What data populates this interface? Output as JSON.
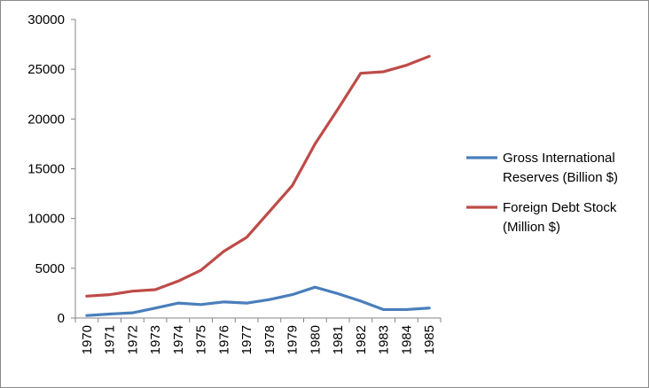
{
  "chart_data": {
    "type": "line",
    "categories": [
      "1970",
      "1971",
      "1972",
      "1973",
      "1974",
      "1975",
      "1976",
      "1977",
      "1978",
      "1979",
      "1980",
      "1981",
      "1982",
      "1983",
      "1984",
      "1985"
    ],
    "x": [
      "1970",
      "1971",
      "1972",
      "1973",
      "1974",
      "1975",
      "1976",
      "1977",
      "1978",
      "1979",
      "1980",
      "1981",
      "1982",
      "1983",
      "1984",
      "1985"
    ],
    "series": [
      {
        "name": "Gross International Reserves (Billion $)",
        "legend_lines": [
          "Gross International",
          "Reserves (Billion $)"
        ],
        "color": "#4a7ebb",
        "values": [
          250,
          400,
          520,
          1000,
          1500,
          1350,
          1620,
          1500,
          1850,
          2350,
          3100,
          2450,
          1700,
          850,
          850,
          1000
        ]
      },
      {
        "name": "Foreign Debt Stock (Million $)",
        "legend_lines": [
          "Foreign Debt Stock",
          "(Million $)"
        ],
        "color": "#be4b48",
        "values": [
          2200,
          2350,
          2700,
          2850,
          3700,
          4800,
          6700,
          8100,
          10700,
          13300,
          17500,
          21000,
          24600,
          24750,
          25400,
          26300
        ]
      }
    ],
    "title": "",
    "xlabel": "",
    "ylabel": "",
    "ylim": [
      0,
      30000
    ],
    "yticks": [
      "0",
      "5000",
      "10000",
      "15000",
      "20000",
      "25000",
      "30000"
    ],
    "ytick_values": [
      0,
      5000,
      10000,
      15000,
      20000,
      25000,
      30000
    ],
    "grid": false,
    "legend_position": "right"
  }
}
